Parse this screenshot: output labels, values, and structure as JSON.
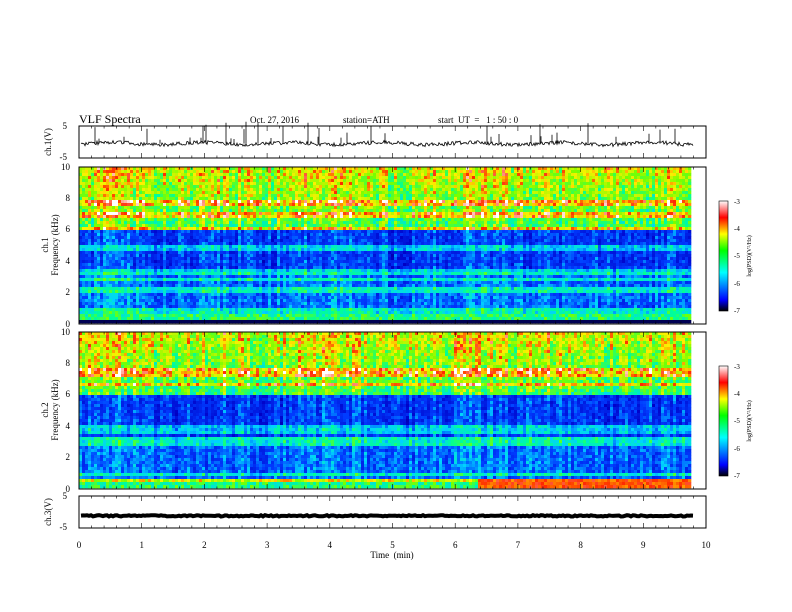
{
  "header": {
    "title": "VLF  Spectra",
    "date": "Oct. 27, 2016",
    "station": "station=ATH",
    "start": "start  UT  =   1 : 50 : 0"
  },
  "colors": {
    "colormap": [
      "#000000",
      "#0000ff",
      "#00ffff",
      "#00ff00",
      "#ffff00",
      "#ff0000",
      "#ffffff"
    ],
    "trace": "#000000"
  },
  "chart_data": [
    {
      "type": "line",
      "name": "ch1-waveform",
      "ylabel": "ch.1(V)",
      "ylim": [
        -5,
        5
      ],
      "yticks": [
        "5",
        "-5"
      ],
      "xlim": [
        0,
        10
      ],
      "data_extent_min": 9.8,
      "mean": -0.5,
      "spike_direction": "up"
    },
    {
      "type": "heatmap",
      "name": "ch1-spectrogram",
      "ylabel": "ch.1\nFrequency  (kHz)",
      "ylim": [
        0,
        10
      ],
      "yticks": [
        "0",
        "2",
        "4",
        "6",
        "8",
        "10"
      ],
      "xlim": [
        0,
        10
      ],
      "colorbar": {
        "label": "log(PSD)(V²/Hz)",
        "range": [
          -7,
          -3
        ],
        "ticks": [
          "-3",
          "-4",
          "-5",
          "-6",
          "-7"
        ]
      }
    },
    {
      "type": "heatmap",
      "name": "ch2-spectrogram",
      "ylabel": "ch.2\nFrequency  (kHz)",
      "ylim": [
        0,
        10
      ],
      "yticks": [
        "0",
        "2",
        "4",
        "6",
        "8",
        "10"
      ],
      "xlim": [
        0,
        10
      ],
      "colorbar": {
        "label": "log(PSD)(V²/Hz)",
        "range": [
          -7,
          -3
        ],
        "ticks": [
          "-3",
          "-4",
          "-5",
          "-6",
          "-7"
        ]
      }
    },
    {
      "type": "line",
      "name": "ch3-waveform",
      "ylabel": "ch.3(V)",
      "ylim": [
        -5,
        5
      ],
      "yticks": [
        "5",
        "-5"
      ],
      "xlim": [
        0,
        10
      ],
      "data_extent_min": 9.8,
      "mean": -1.2
    }
  ],
  "xaxis": {
    "label": "Time  (min)",
    "ticks": [
      "0",
      "1",
      "2",
      "3",
      "4",
      "5",
      "6",
      "7",
      "8",
      "9",
      "10"
    ]
  }
}
